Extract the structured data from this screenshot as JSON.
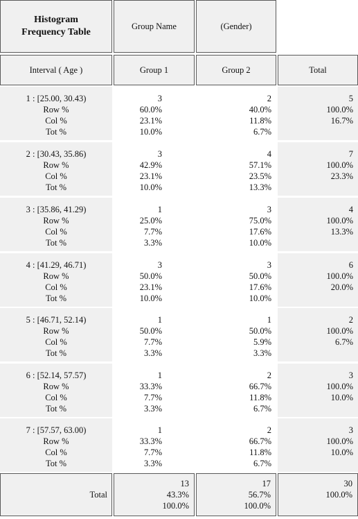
{
  "title": "Histogram Frequency Table",
  "group_name_label": "Group Name",
  "group_var_label": "(Gender)",
  "interval_header": "Interval ( Age )",
  "columns": [
    "Group 1",
    "Group 2",
    "Total"
  ],
  "stat_labels": [
    "Row %",
    "Col %",
    "Tot %"
  ],
  "rows": [
    {
      "interval": "1 : [25.00, 30.43)",
      "g1": [
        "3",
        "60.0%",
        "23.1%",
        "10.0%"
      ],
      "g2": [
        "2",
        "40.0%",
        "11.8%",
        "6.7%"
      ],
      "total": [
        "5",
        "100.0%",
        "16.7%"
      ]
    },
    {
      "interval": "2 : [30.43, 35.86)",
      "g1": [
        "3",
        "42.9%",
        "23.1%",
        "10.0%"
      ],
      "g2": [
        "4",
        "57.1%",
        "23.5%",
        "13.3%"
      ],
      "total": [
        "7",
        "100.0%",
        "23.3%"
      ]
    },
    {
      "interval": "3 : [35.86, 41.29)",
      "g1": [
        "1",
        "25.0%",
        "7.7%",
        "3.3%"
      ],
      "g2": [
        "3",
        "75.0%",
        "17.6%",
        "10.0%"
      ],
      "total": [
        "4",
        "100.0%",
        "13.3%"
      ]
    },
    {
      "interval": "4 : [41.29, 46.71)",
      "g1": [
        "3",
        "50.0%",
        "23.1%",
        "10.0%"
      ],
      "g2": [
        "3",
        "50.0%",
        "17.6%",
        "10.0%"
      ],
      "total": [
        "6",
        "100.0%",
        "20.0%"
      ]
    },
    {
      "interval": "5 : [46.71, 52.14)",
      "g1": [
        "1",
        "50.0%",
        "7.7%",
        "3.3%"
      ],
      "g2": [
        "1",
        "50.0%",
        "5.9%",
        "3.3%"
      ],
      "total": [
        "2",
        "100.0%",
        "6.7%"
      ]
    },
    {
      "interval": "6 : [52.14, 57.57)",
      "g1": [
        "1",
        "33.3%",
        "7.7%",
        "3.3%"
      ],
      "g2": [
        "2",
        "66.7%",
        "11.8%",
        "6.7%"
      ],
      "total": [
        "3",
        "100.0%",
        "10.0%"
      ]
    },
    {
      "interval": "7 : [57.57, 63.00)",
      "g1": [
        "1",
        "33.3%",
        "7.7%",
        "3.3%"
      ],
      "g2": [
        "2",
        "66.7%",
        "11.8%",
        "6.7%"
      ],
      "total": [
        "3",
        "100.0%",
        "10.0%"
      ]
    }
  ],
  "total_row": {
    "label": "Total",
    "g1": [
      "13",
      "43.3%",
      "100.0%"
    ],
    "g2": [
      "17",
      "56.7%",
      "100.0%"
    ],
    "total": [
      "30",
      "100.0%"
    ]
  }
}
